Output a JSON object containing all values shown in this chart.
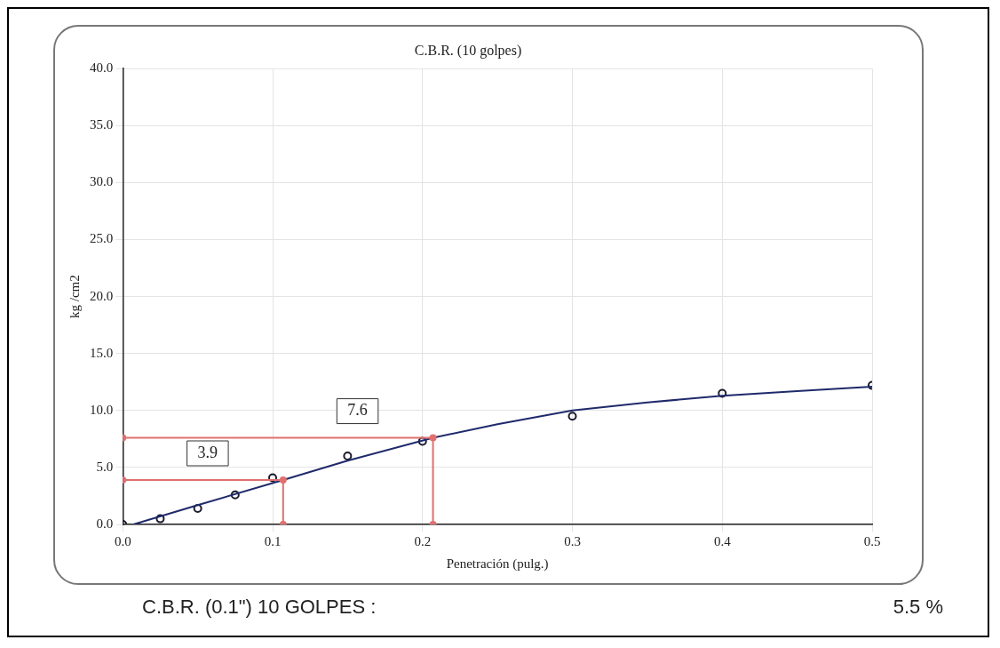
{
  "chart_data": {
    "type": "scatter",
    "title": "C.B.R. (10 golpes)",
    "xlabel": "Penetración (pulg.)",
    "ylabel": "kg /cm2",
    "xlim": [
      0,
      0.5
    ],
    "xticks": [
      {
        "value": 0,
        "label": "0.0"
      },
      {
        "value": 0.1,
        "label": "0.1"
      },
      {
        "value": 0.2,
        "label": "0.2"
      },
      {
        "value": 0.3,
        "label": "0.3"
      },
      {
        "value": 0.4,
        "label": "0.4"
      },
      {
        "value": 0.5,
        "label": "0.5"
      }
    ],
    "ylim": [
      0,
      40
    ],
    "yticks": [
      {
        "value": 0,
        "label": "0.0"
      },
      {
        "value": 5,
        "label": "5.0"
      },
      {
        "value": 10,
        "label": "10.0"
      },
      {
        "value": 15,
        "label": "15.0"
      },
      {
        "value": 20,
        "label": "20.0"
      },
      {
        "value": 25,
        "label": "25.0"
      },
      {
        "value": 30,
        "label": "30.0"
      },
      {
        "value": 35,
        "label": "35.0"
      },
      {
        "value": 40,
        "label": "40.0"
      }
    ],
    "grid": true,
    "legend": false,
    "series": [
      {
        "type": "line",
        "color": "#e07070",
        "marker": "circle",
        "x": [
          0,
          0.107,
          0.107
        ],
        "values": [
          3.9,
          3.9,
          0
        ]
      },
      {
        "type": "line",
        "color": "#e07070",
        "marker": "circle",
        "x": [
          0,
          0.207,
          0.207
        ],
        "values": [
          7.6,
          7.6,
          0
        ]
      },
      {
        "type": "line",
        "color": "#1f2a6b",
        "marker": "none",
        "x": [
          0.007,
          0.05,
          0.107,
          0.15,
          0.207,
          0.25,
          0.3,
          0.35,
          0.4,
          0.45,
          0.5
        ],
        "values": [
          0,
          1.7,
          3.9,
          5.6,
          7.6,
          8.8,
          10.0,
          10.7,
          11.3,
          11.7,
          12.1
        ]
      },
      {
        "color": "#1a1a2e",
        "marker": "circle",
        "x": [
          0,
          0.025,
          0.05,
          0.075,
          0.1,
          0.15,
          0.2,
          0.3,
          0.4,
          0.5
        ],
        "values": [
          0,
          0.5,
          1.4,
          2.6,
          4.1,
          6.0,
          7.3,
          9.5,
          11.5,
          12.2
        ]
      }
    ],
    "annotations": [
      "3.9",
      "7.6",
      "C.B.R. (0.1\") 10 GOLPES :",
      "5.5 %"
    ]
  }
}
